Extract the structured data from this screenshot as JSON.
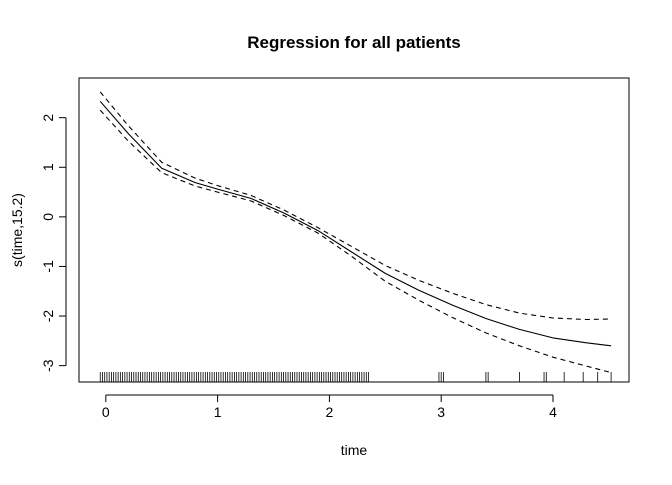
{
  "chart_data": {
    "type": "line",
    "title": "Regression for all patients",
    "xlabel": "time",
    "ylabel": "s(time,15.2)",
    "xlim": [
      -0.24,
      4.68
    ],
    "ylim": [
      -3.33,
      2.8
    ],
    "x_ticks": [
      0,
      1,
      2,
      3,
      4
    ],
    "y_ticks": [
      -3,
      -2,
      -1,
      0,
      1,
      2
    ],
    "x_tick_labels": [
      "0",
      "1",
      "2",
      "3",
      "4"
    ],
    "y_tick_labels": [
      "-3",
      "-2",
      "-1",
      "0",
      "1",
      "2"
    ],
    "grid": false,
    "legend": "none",
    "series": [
      {
        "role": "estimate",
        "style": "solid",
        "x": [
          -0.05,
          0.2,
          0.5,
          0.8,
          1.0,
          1.3,
          1.6,
          1.9,
          2.2,
          2.5,
          2.8,
          3.1,
          3.4,
          3.7,
          4.0,
          4.3,
          4.52
        ],
        "y": [
          2.33,
          1.68,
          0.98,
          0.69,
          0.56,
          0.37,
          0.07,
          -0.28,
          -0.71,
          -1.14,
          -1.48,
          -1.78,
          -2.05,
          -2.27,
          -2.44,
          -2.54,
          -2.6
        ]
      },
      {
        "role": "upper-band",
        "style": "dashed",
        "x": [
          -0.05,
          0.2,
          0.5,
          0.8,
          1.0,
          1.3,
          1.6,
          1.9,
          2.2,
          2.5,
          2.8,
          3.1,
          3.4,
          3.7,
          4.0,
          4.3,
          4.52
        ],
        "y": [
          2.52,
          1.84,
          1.1,
          0.78,
          0.63,
          0.43,
          0.13,
          -0.22,
          -0.6,
          -0.98,
          -1.28,
          -1.54,
          -1.77,
          -1.94,
          -2.04,
          -2.07,
          -2.06
        ]
      },
      {
        "role": "lower-band",
        "style": "dashed",
        "x": [
          -0.05,
          0.2,
          0.5,
          0.8,
          1.0,
          1.3,
          1.6,
          1.9,
          2.2,
          2.5,
          2.8,
          3.1,
          3.4,
          3.7,
          4.0,
          4.3,
          4.52
        ],
        "y": [
          2.15,
          1.53,
          0.89,
          0.62,
          0.5,
          0.32,
          0.02,
          -0.33,
          -0.8,
          -1.3,
          -1.68,
          -2.03,
          -2.34,
          -2.6,
          -2.83,
          -3.01,
          -3.14
        ]
      }
    ],
    "rug": {
      "dense_from": -0.05,
      "dense_to": 2.35,
      "dense_step": 0.02,
      "sparse": [
        2.98,
        3.0,
        3.02,
        3.4,
        3.42,
        3.7,
        3.92,
        3.94,
        4.1,
        4.27,
        4.4,
        4.52
      ]
    }
  }
}
